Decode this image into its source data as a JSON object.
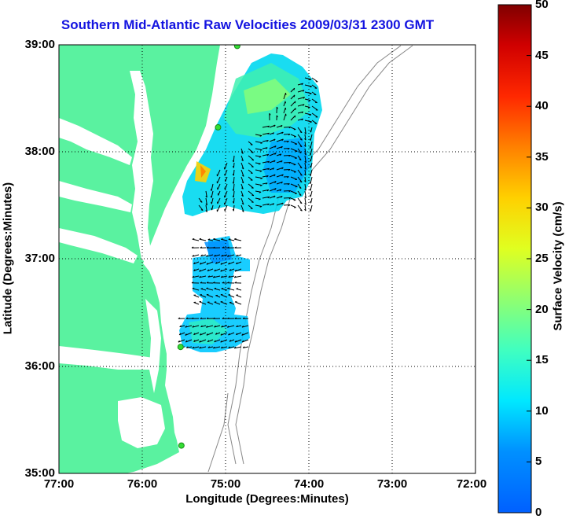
{
  "title": "Southern Mid-Atlantic Raw Velocities 2009/03/31 2300 GMT",
  "xlabel": "Longitude (Degrees:Minutes)",
  "ylabel": "Latitude (Degrees:Minutes)",
  "colorbar_label": "Surface Velocity (cm/s)",
  "x_ticks": [
    "77:00",
    "76:00",
    "75:00",
    "74:00",
    "73:00",
    "72:00"
  ],
  "y_ticks": [
    "39:00",
    "38:00",
    "37:00",
    "36:00",
    "35:00"
  ],
  "colorbar_ticks": [
    "50",
    "45",
    "40",
    "35",
    "30",
    "25",
    "20",
    "15",
    "10",
    "5",
    "0"
  ],
  "colors": {
    "land": "#5af2a0",
    "water": "#ffffff",
    "station": "#33dd33",
    "title": "#1414e0",
    "vector": "#000000",
    "bathymetry": "#888888"
  },
  "chart_data": {
    "type": "map",
    "xlim": [
      -77,
      -72
    ],
    "ylim": [
      35,
      39
    ],
    "clim": [
      0,
      50
    ],
    "grid": true,
    "stations": [
      {
        "lon": -74.86,
        "lat": 38.99
      },
      {
        "lon": -75.09,
        "lat": 38.23
      },
      {
        "lon": -75.54,
        "lat": 36.18
      },
      {
        "lon": -75.53,
        "lat": 35.26
      }
    ]
  }
}
